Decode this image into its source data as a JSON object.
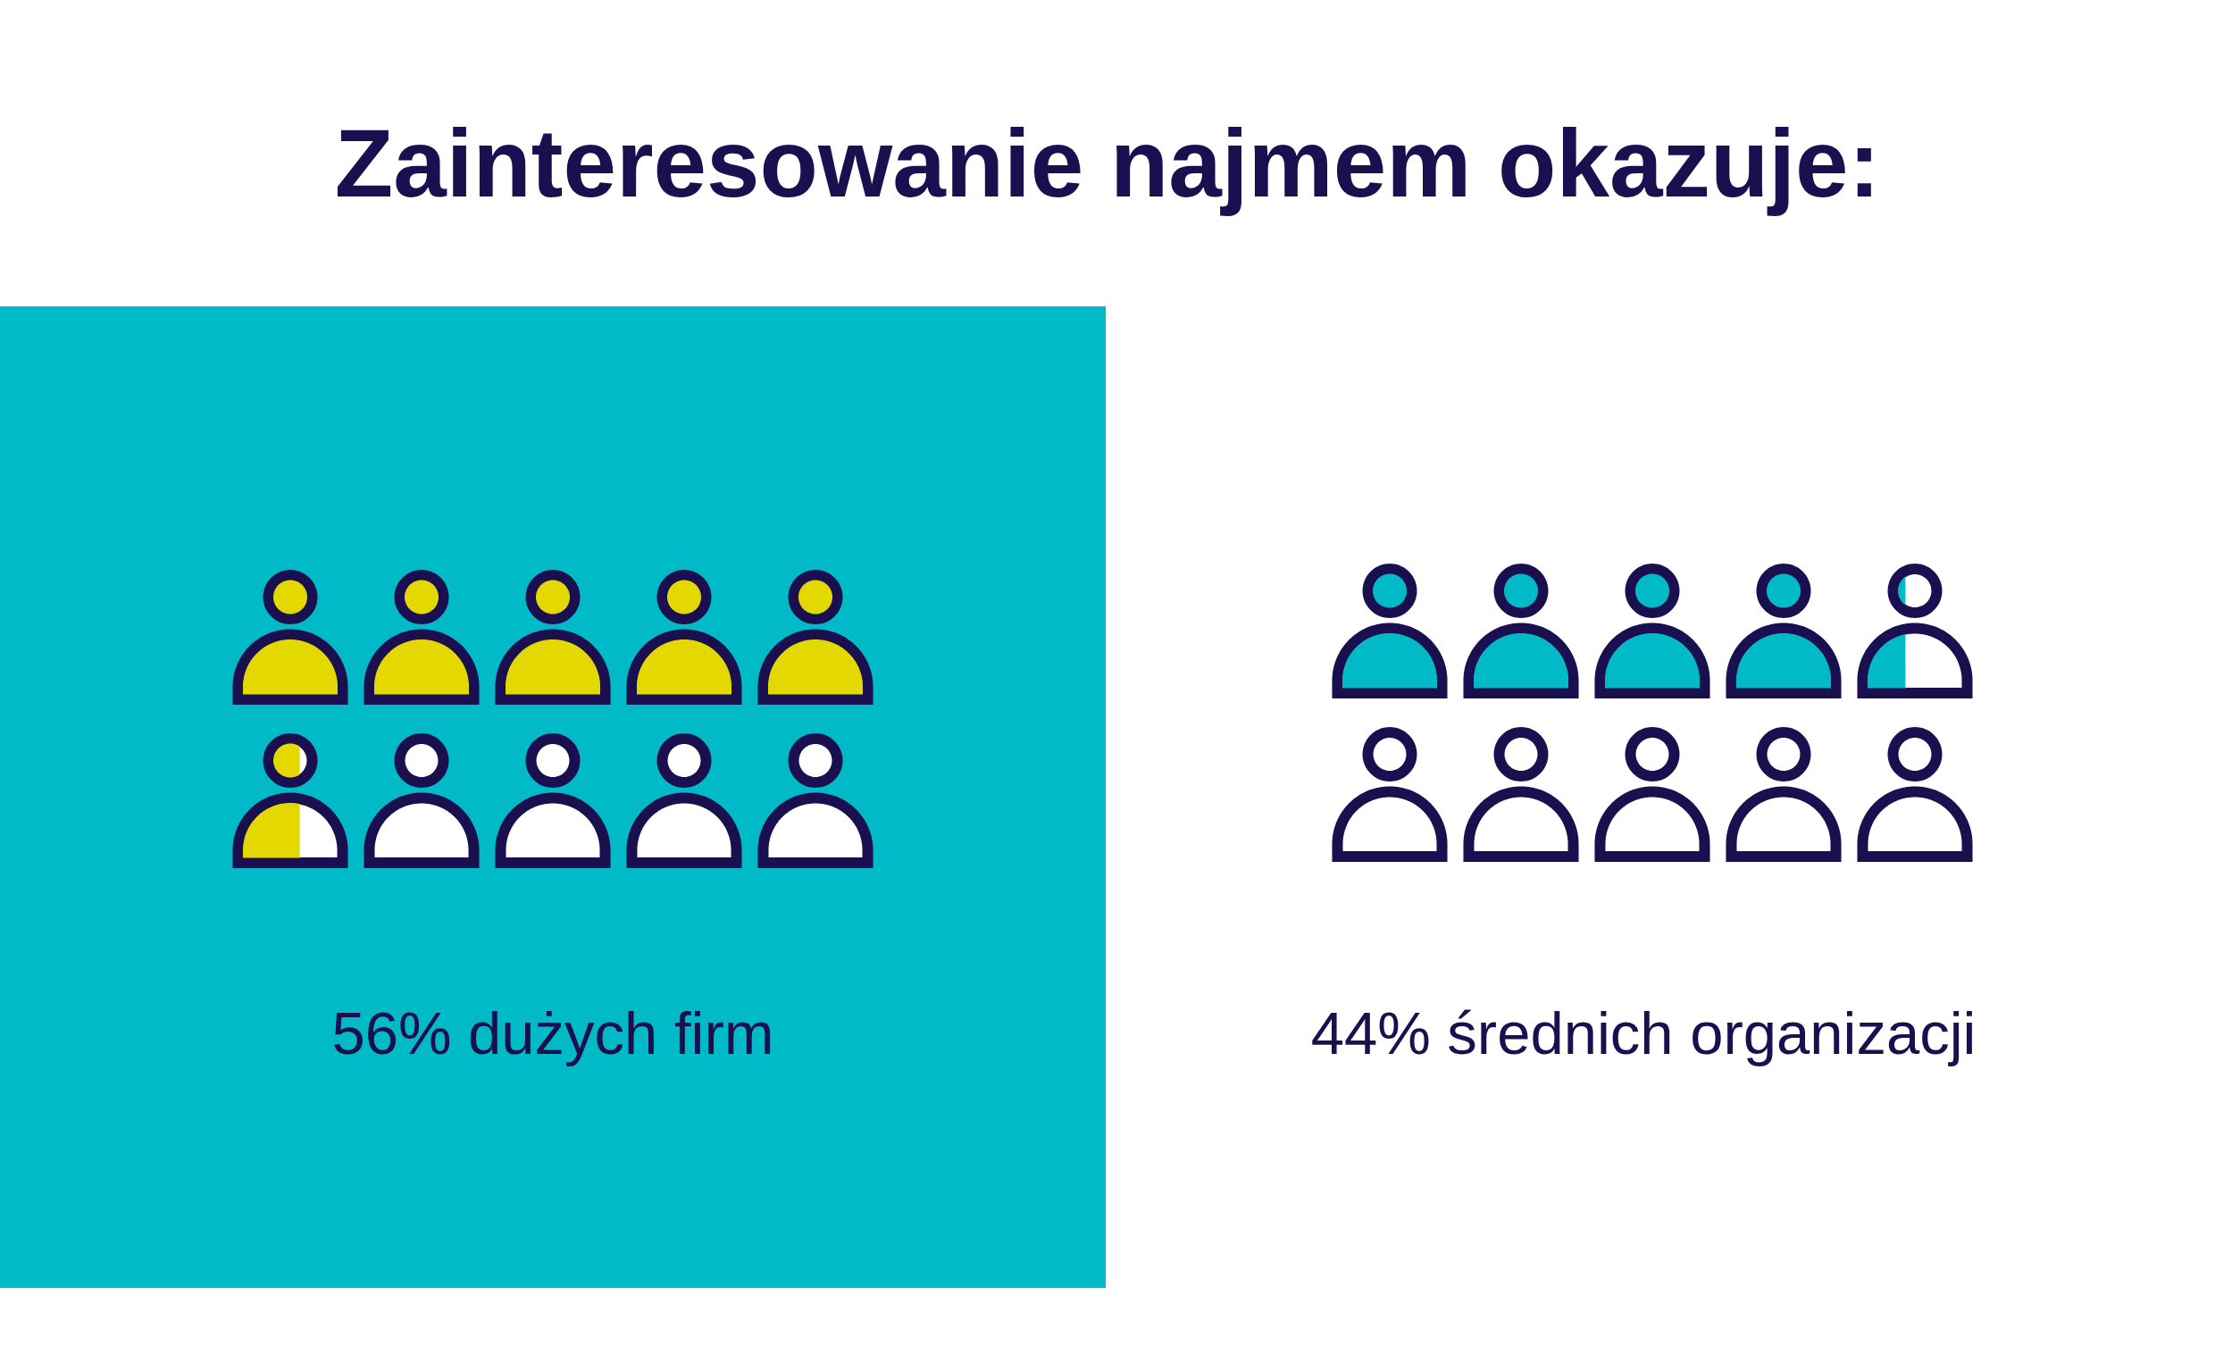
{
  "chart_data": {
    "type": "other",
    "title": "Zainteresowanie najmem okazuje:",
    "categories": [
      "dużych firm",
      "średnich organizacji"
    ],
    "values": [
      56,
      44
    ],
    "value_labels": [
      "56%",
      "44%"
    ]
  }
}
